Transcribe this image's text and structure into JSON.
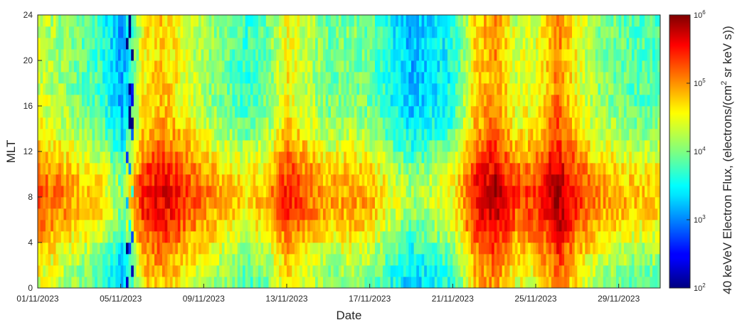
{
  "chart_data": {
    "type": "heatmap",
    "xlabel": "Date",
    "ylabel": "MLT",
    "x_tick_labels": [
      "01/11/2023",
      "05/11/2023",
      "09/11/2023",
      "13/11/2023",
      "17/11/2023",
      "21/11/2023",
      "25/11/2023",
      "29/11/2023"
    ],
    "x_tick_days": [
      1,
      5,
      9,
      13,
      17,
      21,
      25,
      29
    ],
    "xlim_days": [
      1,
      31
    ],
    "y_ticks": [
      0,
      4,
      8,
      12,
      16,
      20,
      24
    ],
    "y_tick_labels": [
      "0",
      "4",
      "8",
      "12",
      "16",
      "20",
      "24"
    ],
    "ylim": [
      0,
      24
    ],
    "colorbar": {
      "label": "40 keVeV Electron Flux, (electrons/(cm² sr keV s))",
      "label_parts": [
        "40 keVeV Electron Flux, (electrons/(cm",
        "2",
        " sr keV s))"
      ],
      "scale": "log",
      "colormap": "jet",
      "range_log10": [
        2,
        6
      ],
      "ticks": [
        {
          "base": "10",
          "exp": "2",
          "log10": 2
        },
        {
          "base": "10",
          "exp": "3",
          "log10": 3
        },
        {
          "base": "10",
          "exp": "4",
          "log10": 4
        },
        {
          "base": "10",
          "exp": "5",
          "log10": 5
        },
        {
          "base": "10",
          "exp": "6",
          "log10": 6
        }
      ]
    },
    "mlt_bin_hours": 1,
    "daily_profile": [
      {
        "day": 1,
        "log10_flux_max": 5.2
      },
      {
        "day": 2,
        "log10_flux_max": 5.0
      },
      {
        "day": 3,
        "log10_flux_max": 4.8
      },
      {
        "day": 4,
        "log10_flux_max": 4.6
      },
      {
        "day": 5,
        "log10_flux_max": 4.0
      },
      {
        "day": 6,
        "log10_flux_max": 5.4
      },
      {
        "day": 7,
        "log10_flux_max": 5.6
      },
      {
        "day": 8,
        "log10_flux_max": 5.3
      },
      {
        "day": 9,
        "log10_flux_max": 5.0
      },
      {
        "day": 10,
        "log10_flux_max": 4.8
      },
      {
        "day": 11,
        "log10_flux_max": 4.6
      },
      {
        "day": 12,
        "log10_flux_max": 4.8
      },
      {
        "day": 13,
        "log10_flux_max": 5.4
      },
      {
        "day": 14,
        "log10_flux_max": 5.1
      },
      {
        "day": 15,
        "log10_flux_max": 4.8
      },
      {
        "day": 16,
        "log10_flux_max": 4.9
      },
      {
        "day": 17,
        "log10_flux_max": 4.8
      },
      {
        "day": 18,
        "log10_flux_max": 4.4
      },
      {
        "day": 19,
        "log10_flux_max": 4.1
      },
      {
        "day": 20,
        "log10_flux_max": 4.3
      },
      {
        "day": 21,
        "log10_flux_max": 4.5
      },
      {
        "day": 22,
        "log10_flux_max": 5.5
      },
      {
        "day": 23,
        "log10_flux_max": 5.8
      },
      {
        "day": 24,
        "log10_flux_max": 5.2
      },
      {
        "day": 25,
        "log10_flux_max": 5.3
      },
      {
        "day": 26,
        "log10_flux_max": 5.9
      },
      {
        "day": 27,
        "log10_flux_max": 5.3
      },
      {
        "day": 28,
        "log10_flux_max": 4.9
      },
      {
        "day": 29,
        "log10_flux_max": 4.8
      },
      {
        "day": 30,
        "log10_flux_max": 4.7
      }
    ],
    "low_flux_bands": [
      5.2,
      5.5
    ]
  }
}
